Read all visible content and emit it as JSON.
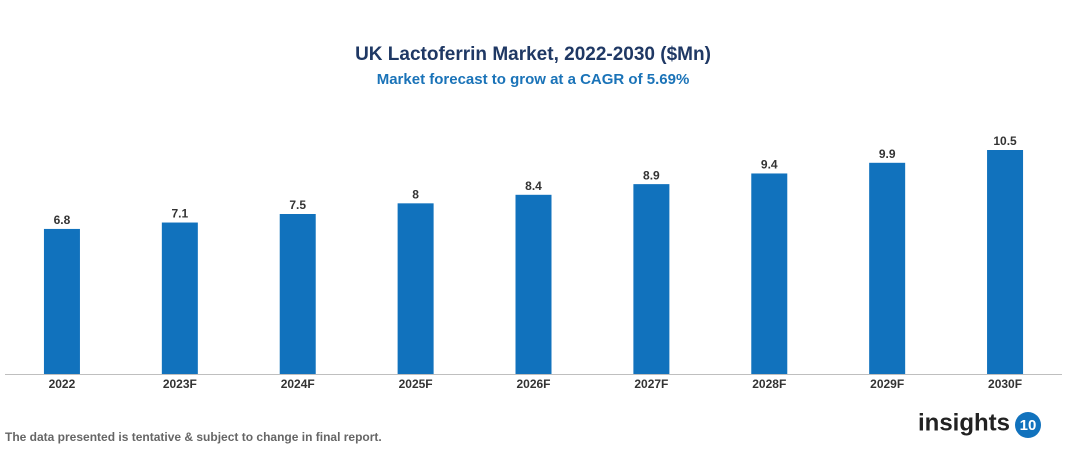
{
  "chart_data": {
    "type": "bar",
    "title": "UK Lactoferrin Market, 2022-2030 ($Mn)",
    "subtitle": "Market forecast to grow at a CAGR of 5.69%",
    "categories": [
      "2022",
      "2023F",
      "2024F",
      "2025F",
      "2026F",
      "2027F",
      "2028F",
      "2029F",
      "2030F"
    ],
    "values": [
      6.8,
      7.1,
      7.5,
      8,
      8.4,
      8.9,
      9.4,
      9.9,
      10.5
    ],
    "color": "#1172bd",
    "ylim": [
      0,
      12
    ],
    "grid": false
  },
  "footnote": "The data presented is tentative & subject to change in final report.",
  "logo": {
    "text": "insights",
    "badge": "10"
  }
}
